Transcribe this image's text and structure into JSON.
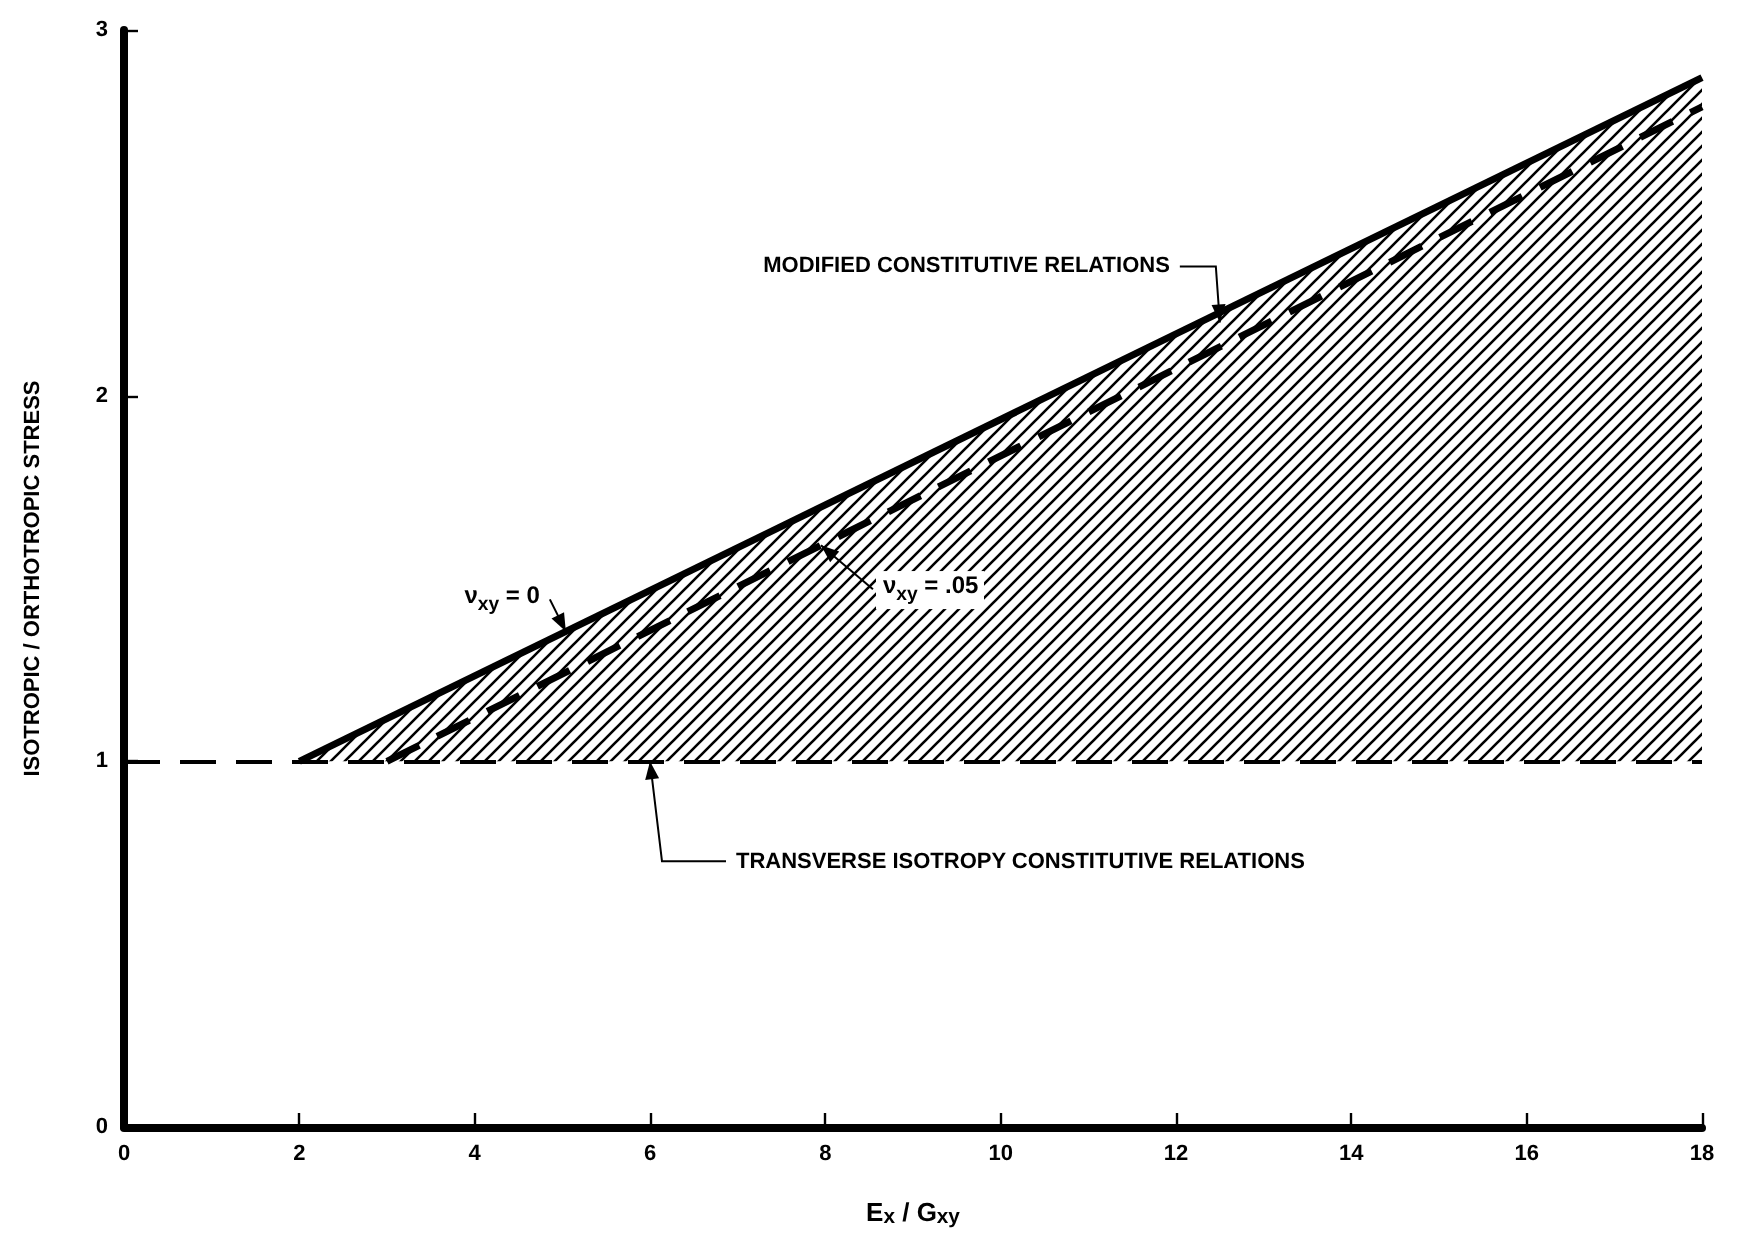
{
  "chart_data": {
    "type": "line",
    "xlabel": "E$_{x}$ / G$_{xy}$",
    "ylabel": "ISOTROPIC / ORTHOTROPIC STRESS",
    "xlim": [
      0,
      18
    ],
    "xticks": [
      0,
      2,
      4,
      6,
      8,
      10,
      12,
      14,
      16,
      18
    ],
    "ylim": [
      0,
      3
    ],
    "yticks": [
      0,
      1,
      2,
      3
    ],
    "grid": false,
    "legend": false,
    "marker": "none",
    "series": [
      {
        "name": "ν$_{xy}$ = 0",
        "color": "#000000",
        "x": [
          2,
          18
        ],
        "values": [
          1,
          2.87
        ],
        "line_style": "solid",
        "lower": [
          1,
          1
        ],
        "upper": [
          1,
          2.87
        ]
      },
      {
        "name": "ν$_{xy}$ = .05",
        "color": "#000000",
        "x": [
          3,
          18
        ],
        "values": [
          1,
          2.79
        ],
        "line_style": "dashed"
      }
    ],
    "ref_lines": [
      {
        "axis": "y",
        "value": 1,
        "label": "TRANSVERSE ISOTROPY CONSTITUTIVE RELATIONS",
        "color": "#000000",
        "line_style": "dashed"
      }
    ],
    "annotations": [
      {
        "text": "MODIFIED CONSTITUTIVE RELATIONS",
        "x": 12.5,
        "y": 2.2
      }
    ]
  }
}
